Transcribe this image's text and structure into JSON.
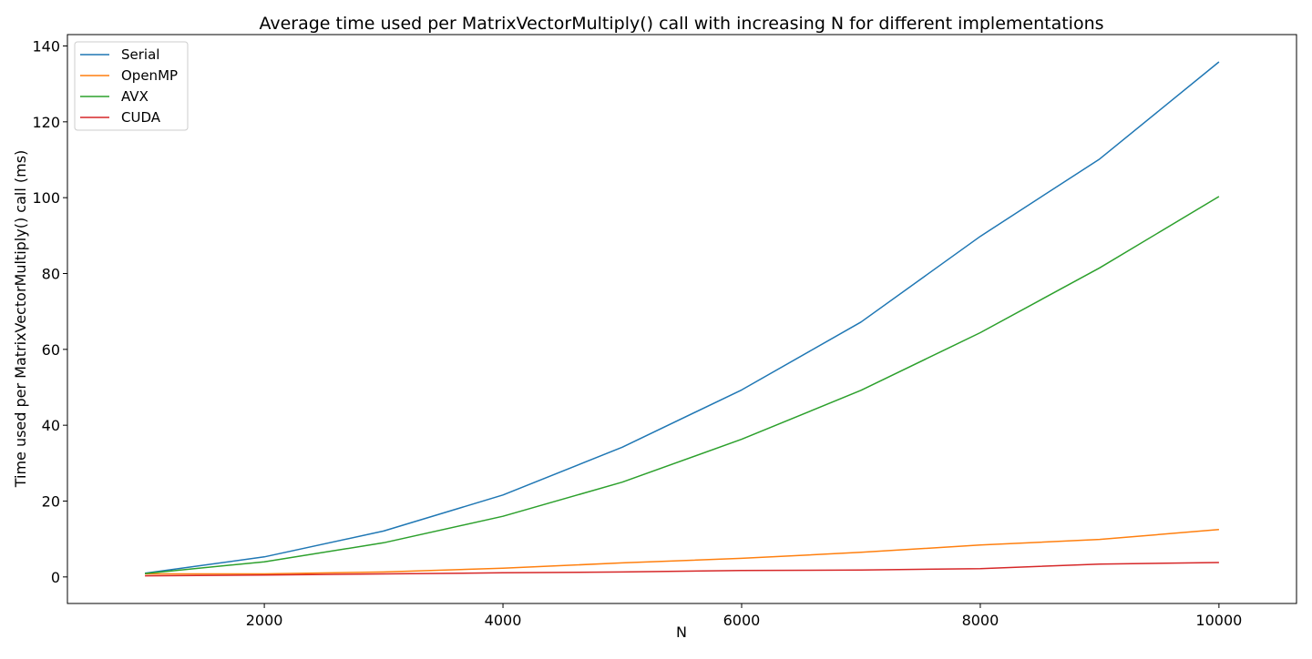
{
  "chart_data": {
    "type": "line",
    "title": "Average time used per MatrixVectorMultiply() call with increasing N for different implementations",
    "xlabel": "N",
    "ylabel": "Time used per MatrixVectorMultiply() call (ms)",
    "xlim": [
      350,
      10650
    ],
    "ylim": [
      -7,
      143
    ],
    "xticks": [
      2000,
      4000,
      6000,
      8000,
      10000
    ],
    "yticks": [
      0,
      20,
      40,
      60,
      80,
      100,
      120,
      140
    ],
    "grid": false,
    "legend_position": "top-left",
    "x": [
      1000,
      2000,
      3000,
      4000,
      5000,
      6000,
      7000,
      8000,
      9000,
      10000
    ],
    "series": [
      {
        "name": "Serial",
        "color": "#1f77b4",
        "values": [
          1.0,
          5.3,
          12.1,
          21.6,
          34.2,
          49.3,
          67.2,
          89.8,
          110.2,
          135.8
        ]
      },
      {
        "name": "OpenMP",
        "color": "#ff7f0e",
        "values": [
          0.8,
          0.8,
          1.3,
          2.3,
          3.7,
          4.9,
          6.5,
          8.4,
          9.9,
          12.5
        ]
      },
      {
        "name": "AVX",
        "color": "#2ca02c",
        "values": [
          0.9,
          4.0,
          9.0,
          16.0,
          25.0,
          36.3,
          49.2,
          64.4,
          81.5,
          100.3
        ]
      },
      {
        "name": "CUDA",
        "color": "#d62728",
        "values": [
          0.3,
          0.5,
          0.8,
          1.1,
          1.3,
          1.7,
          1.8,
          2.2,
          3.4,
          3.8
        ]
      }
    ]
  }
}
